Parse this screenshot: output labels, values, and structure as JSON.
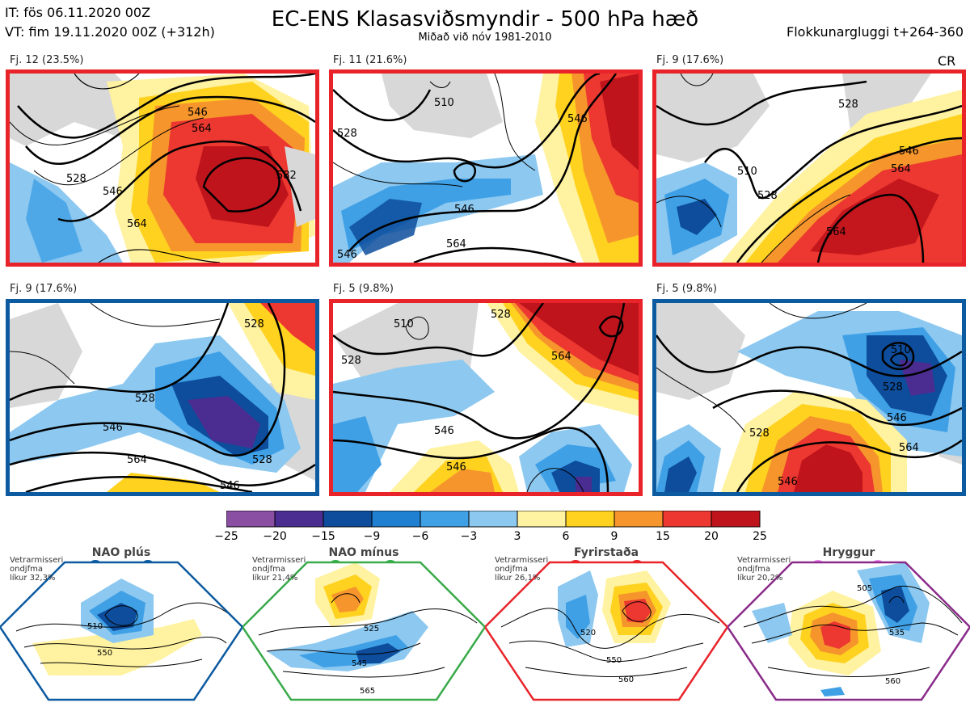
{
  "header": {
    "it": "IT: fös 06.11.2020 00Z",
    "vt": "VT: fim 19.11.2020 00Z  (+312h)",
    "title": "EC-ENS Klasasviðsmyndir - 500 hPa hæð",
    "subtitle": "Miðað við nóv 1981-2010",
    "window": "Flokkunargluggi t+264-360",
    "cr": "CR"
  },
  "panels": [
    {
      "label": "Fj. 12 (23.5%)",
      "regime": "Fyrirstaða",
      "contours": [
        "528",
        "546",
        "564",
        "582",
        "546",
        "564"
      ]
    },
    {
      "label": "Fj. 11 (21.6%)",
      "regime": "Fyrirstaða",
      "contours": [
        "510",
        "528",
        "546",
        "546",
        "564",
        "546"
      ]
    },
    {
      "label": "Fj. 9 (17.6%)",
      "regime": "Fyrirstaða",
      "contours": [
        "528",
        "510",
        "528",
        "546",
        "564",
        "564"
      ]
    },
    {
      "label": "Fj. 9 (17.6%)",
      "regime": "NAO plús",
      "contours": [
        "528",
        "546",
        "564",
        "528",
        "546",
        "528"
      ]
    },
    {
      "label": "Fj. 5 (9.8%)",
      "regime": "Fyrirstaða",
      "contours": [
        "528",
        "510",
        "528",
        "546",
        "564",
        "546"
      ]
    },
    {
      "label": "Fj. 5 (9.8%)",
      "regime": "NAO plús",
      "contours": [
        "510",
        "528",
        "546",
        "528",
        "546",
        "564"
      ]
    }
  ],
  "colorbar": {
    "ticks": [
      "−25",
      "−20",
      "−15",
      "−9",
      "−6",
      "−3",
      "3",
      "6",
      "9",
      "15",
      "20",
      "25"
    ],
    "colors": [
      "#8a4fa3",
      "#4b2d91",
      "#0d4d9c",
      "#1f7fd0",
      "#3fa0e6",
      "#8cc8f0",
      "#ffffff",
      "#fff2a0",
      "#ffd21f",
      "#f6952c",
      "#ec3830",
      "#c0141c"
    ]
  },
  "regimes": [
    {
      "name": "NAO plús",
      "prob": [
        "Vetrarmisseri",
        "ondjfma",
        "líkur 32,3%"
      ],
      "color": "#0c5aa0",
      "dot": "#0c5aa0",
      "contours": [
        "510",
        "550"
      ]
    },
    {
      "name": "NAO mínus",
      "prob": [
        "Vetrarmisseri",
        "ondjfma",
        "líkur 21,4%"
      ],
      "color": "#3aaa4a",
      "dot": "#2eb04a",
      "contours": [
        "525",
        "545",
        "565"
      ]
    },
    {
      "name": "Fyrirstaða",
      "prob": [
        "Vetrarmisseri",
        "ondjfma",
        "líkur 26,1%"
      ],
      "color": "#e8242a",
      "dot": "#e8242a",
      "contours": [
        "520",
        "550",
        "560"
      ]
    },
    {
      "name": "Hryggur",
      "prob": [
        "Vetrarmisseri",
        "ondjfma",
        "líkur 20,2%"
      ],
      "color": "#8a2b8a",
      "dot": "#ee82ee",
      "contours": [
        "505",
        "535",
        "560"
      ]
    }
  ]
}
